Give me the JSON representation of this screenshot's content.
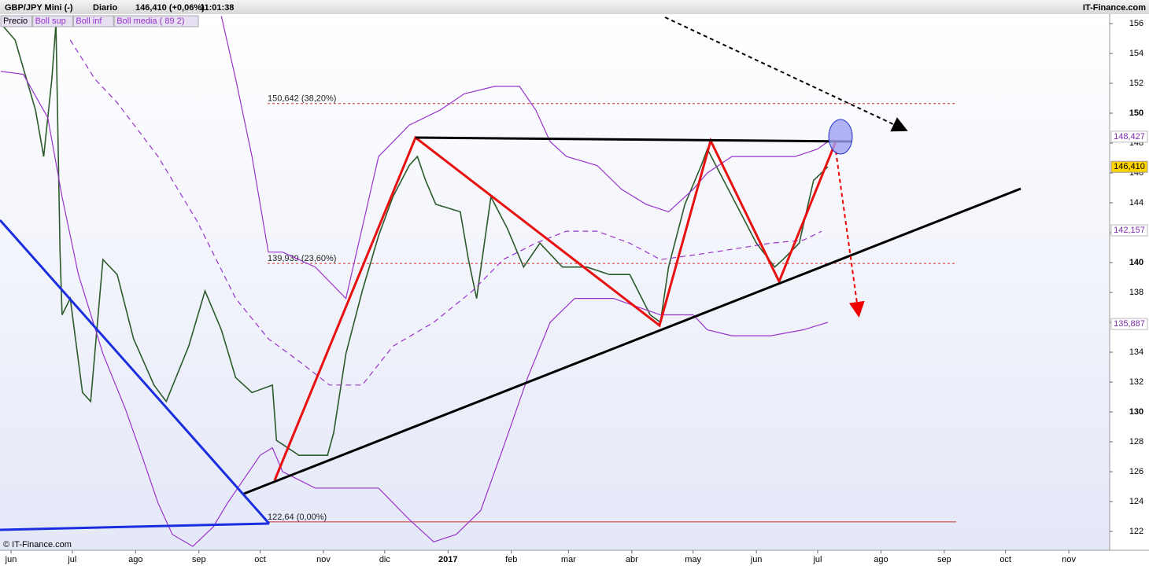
{
  "chart_data": {
    "type": "line",
    "title": "GBP/JPY Mini (-)",
    "period": "Diario",
    "quote": "146,410 (+0,06%)",
    "time": "11:01:38",
    "source": "IT-Finance.com",
    "watermark": "© IT-Finance.com",
    "series": [
      {
        "name": "Precio",
        "color": "#2b5a2b",
        "x": [
          -5,
          2,
          12,
          16,
          20,
          22,
          24,
          25,
          29,
          35,
          39,
          45,
          52,
          60,
          70,
          76,
          87,
          95,
          103,
          110,
          118,
          128,
          130,
          141,
          155,
          158,
          164,
          172,
          180,
          187,
          195,
          199,
          203,
          208,
          220,
          224,
          228,
          235,
          243,
          251,
          259,
          270,
          282,
          293,
          303,
          313,
          318,
          322,
          330,
          338,
          341,
          349,
          357,
          365,
          374,
          378,
          386,
          393,
          400
        ],
        "values": [
          156.0,
          154.9,
          150.2,
          147.1,
          152.3,
          156.0,
          140.7,
          136.5,
          137.6,
          131.3,
          130.7,
          140.2,
          139.2,
          134.9,
          131.8,
          130.7,
          134.4,
          138.1,
          135.5,
          132.3,
          131.3,
          131.8,
          128.1,
          127.1,
          127.1,
          128.6,
          133.9,
          138.1,
          141.8,
          144.4,
          146.5,
          147.1,
          145.5,
          143.9,
          143.4,
          140.2,
          137.6,
          144.4,
          142.3,
          139.7,
          141.3,
          139.7,
          139.7,
          139.2,
          139.2,
          136.5,
          136.0,
          139.7,
          143.9,
          146.5,
          147.6,
          145.5,
          143.4,
          141.3,
          139.7,
          140.2,
          141.3,
          145.5,
          146.41
        ]
      },
      {
        "name": "Boll sup",
        "color": "#9933cc",
        "x": [
          103,
          110,
          118,
          126,
          133,
          149,
          164,
          180,
          195,
          210,
          222,
          237,
          249,
          257,
          264,
          272,
          287,
          299,
          311,
          322,
          334,
          341,
          353,
          368,
          384,
          395,
          400
        ],
        "values": [
          156.5,
          152.3,
          147.1,
          140.7,
          140.7,
          139.7,
          137.6,
          147.1,
          149.2,
          150.2,
          151.3,
          151.8,
          151.8,
          150.2,
          148.1,
          147.1,
          146.5,
          144.9,
          143.9,
          143.4,
          144.9,
          146.0,
          147.1,
          147.1,
          147.1,
          147.6,
          148.1
        ]
      },
      {
        "name": "Boll inf",
        "color": "#9933cc",
        "x": [
          -5,
          6,
          18,
          25,
          33,
          45,
          56,
          64,
          72,
          79,
          89,
          99,
          106,
          114,
          122,
          128,
          133,
          149,
          164,
          180,
          195,
          207,
          218,
          230,
          241,
          253,
          264,
          276,
          295,
          318,
          334,
          341,
          353,
          372,
          388,
          400
        ],
        "values": [
          152.8,
          152.6,
          149.7,
          144.4,
          139.2,
          133.9,
          130.2,
          127.1,
          123.9,
          121.8,
          121.0,
          122.3,
          123.9,
          125.5,
          127.1,
          127.6,
          126.0,
          124.9,
          124.9,
          124.9,
          122.8,
          121.3,
          121.8,
          123.4,
          127.6,
          132.3,
          136.0,
          137.6,
          137.6,
          136.5,
          136.5,
          135.5,
          135.1,
          135.1,
          135.5,
          136.0
        ]
      },
      {
        "name": "Boll media ( 89 2)",
        "color": "#9933cc",
        "dashed": true,
        "x": [
          29,
          41,
          52,
          72,
          91,
          110,
          126,
          141,
          156,
          172,
          187,
          207,
          226,
          241,
          257,
          272,
          287,
          303,
          318,
          334,
          349,
          372,
          388,
          397
        ],
        "values": [
          154.9,
          152.3,
          150.7,
          147.1,
          142.8,
          137.6,
          134.9,
          133.4,
          131.8,
          131.8,
          134.4,
          136.0,
          138.1,
          140.2,
          141.3,
          142.1,
          142.1,
          141.3,
          140.2,
          140.5,
          140.8,
          141.3,
          141.5,
          142.1
        ]
      }
    ],
    "levels": [
      {
        "value": 150.642,
        "label": "150,642 (38,20%)"
      },
      {
        "value": 139.939,
        "label": "139,939 (23,60%)"
      },
      {
        "value": 122.64,
        "label": "122,64 (0,00%)"
      }
    ],
    "price_tags": [
      {
        "value": 148.427,
        "label": "148,427"
      },
      {
        "value": 146.41,
        "label": "146,410"
      },
      {
        "value": 142.157,
        "label": "142,157"
      },
      {
        "value": 135.887,
        "label": "135,887"
      }
    ],
    "xlim": [
      -5.4,
      538
    ],
    "ylim": [
      120.74,
      156.63
    ],
    "xticks": [
      {
        "value": 0,
        "label": "jun"
      },
      {
        "value": 30,
        "label": "jul"
      },
      {
        "value": 61,
        "label": "ago"
      },
      {
        "value": 92,
        "label": "sep"
      },
      {
        "value": 122,
        "label": "oct"
      },
      {
        "value": 153,
        "label": "nov"
      },
      {
        "value": 183,
        "label": "dic"
      },
      {
        "value": 214,
        "label": "2017"
      },
      {
        "value": 245,
        "label": "feb"
      },
      {
        "value": 273,
        "label": "mar"
      },
      {
        "value": 304,
        "label": "abr"
      },
      {
        "value": 334,
        "label": "may"
      },
      {
        "value": 365,
        "label": "jun"
      },
      {
        "value": 395,
        "label": "jul"
      },
      {
        "value": 426,
        "label": "ago"
      },
      {
        "value": 457,
        "label": "sep"
      },
      {
        "value": 487,
        "label": "oct"
      },
      {
        "value": 518,
        "label": "nov"
      }
    ],
    "yticks": [
      122,
      124,
      126,
      128,
      130,
      132,
      134,
      136,
      138,
      140,
      142,
      144,
      146,
      148,
      150,
      152,
      154,
      156
    ]
  }
}
